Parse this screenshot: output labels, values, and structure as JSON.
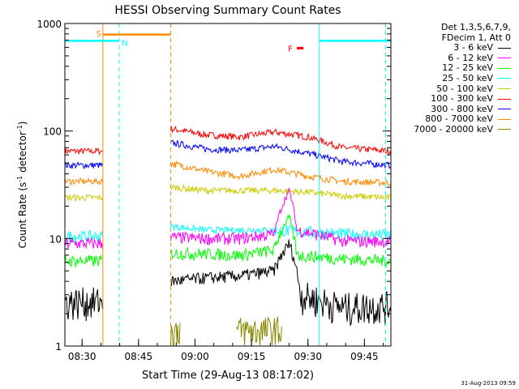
{
  "chart_data": {
    "type": "line",
    "title": "HESSI Observing Summary Count Rates",
    "xlabel": "Start Time (29-Aug-13 08:17:02)",
    "ylabel": "Count Rate (s⁻¹ detector⁻¹)",
    "ylabel_parts": {
      "a": "Count Rate (s",
      "b": "-1",
      "c": " detector",
      "d": "-1",
      "e": ")"
    },
    "yscale": "log",
    "ylim": [
      1,
      1000
    ],
    "xlim_minutes": [
      8.4,
      95.0
    ],
    "x_ticks": [
      {
        "label": "08:30",
        "minutes": 12.97
      },
      {
        "label": "08:45",
        "minutes": 27.97
      },
      {
        "label": "09:00",
        "minutes": 42.97
      },
      {
        "label": "09:15",
        "minutes": 57.97
      },
      {
        "label": "09:30",
        "minutes": 72.97
      },
      {
        "label": "09:45",
        "minutes": 87.97
      }
    ],
    "y_ticks": [
      {
        "label": "1",
        "value": 1
      },
      {
        "label": "10",
        "value": 10
      },
      {
        "label": "100",
        "value": 100
      },
      {
        "label": "1000",
        "value": 1000
      }
    ],
    "legend": {
      "header": [
        "Det 1,3,5,6,7,9,",
        "FDecim 1, Att 0"
      ],
      "entries": [
        {
          "label": "3 - 6 keV",
          "color": "#000000"
        },
        {
          "label": "6 - 12 keV",
          "color": "#ff00ff"
        },
        {
          "label": "12 - 25 keV",
          "color": "#00ff00"
        },
        {
          "label": "25 - 50 keV",
          "color": "#00ffff"
        },
        {
          "label": "50 - 100 keV",
          "color": "#cccc00"
        },
        {
          "label": "100 - 300 keV",
          "color": "#ff0000"
        },
        {
          "label": "300 - 800 keV",
          "color": "#0000ff"
        },
        {
          "label": "800 - 7000 keV",
          "color": "#ff8800"
        },
        {
          "label": "7000 - 20000 keV",
          "color": "#888800"
        }
      ]
    },
    "flags": [
      {
        "label": "S",
        "color": "#ff8800"
      },
      {
        "label": "N",
        "color": "#00ffff"
      },
      {
        "label": "F",
        "color": "#ff0000"
      }
    ],
    "series": [
      {
        "color": "#ff0000",
        "segments": [
          [
            [
              8.4,
              65
            ],
            [
              18.4,
              65
            ]
          ],
          [
            [
              36.5,
              105
            ],
            [
              46,
              92
            ],
            [
              55,
              88
            ],
            [
              64,
              98
            ],
            [
              73,
              88
            ],
            [
              82,
              70
            ],
            [
              95,
              65
            ]
          ]
        ]
      },
      {
        "color": "#0000ff",
        "segments": [
          [
            [
              8.4,
              48
            ],
            [
              18.4,
              48
            ]
          ],
          [
            [
              36.5,
              78
            ],
            [
              46,
              68
            ],
            [
              55,
              66
            ],
            [
              64,
              72
            ],
            [
              73,
              62
            ],
            [
              82,
              52
            ],
            [
              95,
              48
            ]
          ]
        ]
      },
      {
        "color": "#ff8800",
        "segments": [
          [
            [
              8.4,
              34
            ],
            [
              18.4,
              34
            ]
          ],
          [
            [
              36.5,
              50
            ],
            [
              46,
              42
            ],
            [
              55,
              38
            ],
            [
              64,
              44
            ],
            [
              73,
              38
            ],
            [
              82,
              34
            ],
            [
              95,
              33
            ]
          ]
        ]
      },
      {
        "color": "#cccc00",
        "segments": [
          [
            [
              8.4,
              24
            ],
            [
              18.4,
              24
            ]
          ],
          [
            [
              36.5,
              30
            ],
            [
              46,
              28
            ],
            [
              55,
              28
            ],
            [
              64,
              28
            ],
            [
              73,
              27
            ],
            [
              82,
              25
            ],
            [
              95,
              24
            ]
          ]
        ]
      },
      {
        "color": "#00ffff",
        "segments": [
          [
            [
              8.4,
              10.5
            ],
            [
              18.4,
              10.5
            ]
          ],
          [
            [
              36.5,
              13
            ],
            [
              46,
              12
            ],
            [
              55,
              12
            ],
            [
              64,
              12
            ],
            [
              73,
              11.5
            ],
            [
              82,
              11
            ],
            [
              95,
              10.8
            ]
          ]
        ]
      },
      {
        "color": "#ff00ff",
        "segments": [
          [
            [
              8.4,
              9
            ],
            [
              18.4,
              9
            ]
          ],
          [
            [
              36.5,
              10.3
            ],
            [
              46,
              10
            ],
            [
              55,
              10
            ],
            [
              64,
              11
            ],
            [
              68,
              28
            ],
            [
              70,
              12
            ],
            [
              82,
              9.5
            ],
            [
              95,
              9.4
            ]
          ]
        ]
      },
      {
        "color": "#00ff00",
        "segments": [
          [
            [
              8.4,
              6.2
            ],
            [
              18.4,
              6.2
            ]
          ],
          [
            [
              36.5,
              7.3
            ],
            [
              46,
              7.2
            ],
            [
              55,
              7
            ],
            [
              64,
              7.8
            ],
            [
              68,
              16
            ],
            [
              70,
              7
            ],
            [
              82,
              6.5
            ],
            [
              95,
              6.2
            ]
          ]
        ]
      },
      {
        "color": "#000000",
        "segments": [
          [
            [
              8.4,
              2.6
            ],
            [
              18.4,
              2.6
            ]
          ],
          [
            [
              36.5,
              4
            ],
            [
              46,
              4.3
            ],
            [
              55,
              4.5
            ],
            [
              64,
              5
            ],
            [
              68,
              9
            ],
            [
              71,
              3
            ],
            [
              82,
              2.3
            ],
            [
              95,
              2.4
            ]
          ]
        ]
      },
      {
        "color": "#888800",
        "segments": [
          [
            [
              36.5,
              1.3
            ],
            [
              39,
              1.5
            ]
          ],
          [
            [
              54,
              1.4
            ],
            [
              66,
              1.4
            ]
          ]
        ]
      }
    ],
    "annotation_lines": [
      {
        "color": "#00ffff",
        "style": "solid",
        "minutes": 8.4,
        "value_top": 700
      },
      {
        "color": "#ff8800",
        "style": "solid",
        "minutes": 18.5
      },
      {
        "color": "#00ffff",
        "style": "dashed",
        "minutes": 22.8
      },
      {
        "color": "#ff8800",
        "style": "dashed",
        "minutes": 36.5
      },
      {
        "color": "#00ffff",
        "style": "solid",
        "minutes": 76.0
      },
      {
        "color": "#00ffff",
        "style": "dashed",
        "minutes": 93.6
      }
    ]
  },
  "footer": {
    "timestamp": "31-Aug-2013 09:59"
  }
}
